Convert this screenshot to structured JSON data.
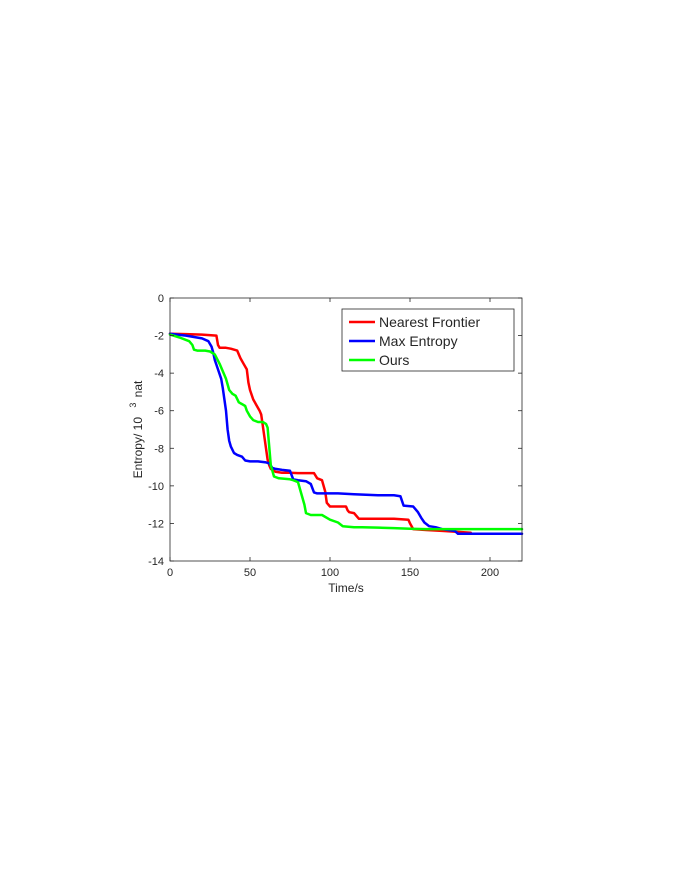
{
  "chart_data": {
    "type": "line",
    "title": "",
    "xlabel": "Time/s",
    "ylabel": {
      "prefix": "Entropy/ 10",
      "sup": "3",
      "suffix": "nat"
    },
    "xlim": [
      0,
      220
    ],
    "ylim": [
      -14,
      0
    ],
    "xticks": [
      0,
      50,
      100,
      150,
      200
    ],
    "yticks": [
      0,
      -2,
      -4,
      -6,
      -8,
      -10,
      -12,
      -14
    ],
    "grid": false,
    "legend_position": "top-right",
    "series": [
      {
        "name": "Nearest Frontier",
        "color": "#ff0000",
        "points": [
          [
            0,
            -1.9
          ],
          [
            10,
            -1.92
          ],
          [
            20,
            -1.95
          ],
          [
            29,
            -2.0
          ],
          [
            30,
            -2.5
          ],
          [
            31,
            -2.65
          ],
          [
            35,
            -2.65
          ],
          [
            38,
            -2.7
          ],
          [
            42,
            -2.8
          ],
          [
            44,
            -3.2
          ],
          [
            46,
            -3.5
          ],
          [
            48,
            -3.8
          ],
          [
            49,
            -4.5
          ],
          [
            50,
            -4.9
          ],
          [
            52,
            -5.4
          ],
          [
            54,
            -5.7
          ],
          [
            56,
            -6.0
          ],
          [
            57,
            -6.2
          ],
          [
            58,
            -6.8
          ],
          [
            59,
            -7.4
          ],
          [
            60,
            -8.0
          ],
          [
            61,
            -8.6
          ],
          [
            62,
            -8.9
          ],
          [
            63,
            -9.1
          ],
          [
            66,
            -9.25
          ],
          [
            70,
            -9.3
          ],
          [
            75,
            -9.3
          ],
          [
            80,
            -9.32
          ],
          [
            90,
            -9.32
          ],
          [
            92,
            -9.6
          ],
          [
            95,
            -9.7
          ],
          [
            97,
            -10.3
          ],
          [
            98,
            -10.9
          ],
          [
            100,
            -11.1
          ],
          [
            110,
            -11.1
          ],
          [
            111,
            -11.3
          ],
          [
            112,
            -11.4
          ],
          [
            115,
            -11.45
          ],
          [
            118,
            -11.75
          ],
          [
            130,
            -11.75
          ],
          [
            140,
            -11.75
          ],
          [
            149,
            -11.8
          ],
          [
            150,
            -12.0
          ],
          [
            152,
            -12.3
          ],
          [
            160,
            -12.35
          ],
          [
            170,
            -12.4
          ],
          [
            180,
            -12.45
          ],
          [
            188,
            -12.5
          ]
        ]
      },
      {
        "name": "Max Entropy",
        "color": "#0000ff",
        "points": [
          [
            0,
            -1.9
          ],
          [
            10,
            -2.0
          ],
          [
            20,
            -2.15
          ],
          [
            24,
            -2.3
          ],
          [
            26,
            -2.6
          ],
          [
            27,
            -2.9
          ],
          [
            28,
            -3.3
          ],
          [
            30,
            -3.8
          ],
          [
            32,
            -4.3
          ],
          [
            33,
            -4.8
          ],
          [
            34,
            -5.4
          ],
          [
            35,
            -6.0
          ],
          [
            36,
            -7.0
          ],
          [
            37,
            -7.6
          ],
          [
            38,
            -7.9
          ],
          [
            40,
            -8.25
          ],
          [
            42,
            -8.35
          ],
          [
            45,
            -8.45
          ],
          [
            47,
            -8.65
          ],
          [
            50,
            -8.7
          ],
          [
            55,
            -8.7
          ],
          [
            60,
            -8.75
          ],
          [
            62,
            -8.8
          ],
          [
            64,
            -9.05
          ],
          [
            66,
            -9.1
          ],
          [
            70,
            -9.15
          ],
          [
            75,
            -9.2
          ],
          [
            77,
            -9.65
          ],
          [
            80,
            -9.7
          ],
          [
            85,
            -9.75
          ],
          [
            88,
            -9.9
          ],
          [
            90,
            -10.35
          ],
          [
            92,
            -10.4
          ],
          [
            100,
            -10.4
          ],
          [
            105,
            -10.4
          ],
          [
            115,
            -10.45
          ],
          [
            130,
            -10.5
          ],
          [
            140,
            -10.5
          ],
          [
            144,
            -10.55
          ],
          [
            146,
            -11.05
          ],
          [
            152,
            -11.1
          ],
          [
            155,
            -11.4
          ],
          [
            157,
            -11.7
          ],
          [
            159,
            -11.95
          ],
          [
            162,
            -12.15
          ],
          [
            166,
            -12.2
          ],
          [
            170,
            -12.3
          ],
          [
            178,
            -12.4
          ],
          [
            180,
            -12.55
          ],
          [
            190,
            -12.55
          ],
          [
            200,
            -12.55
          ],
          [
            210,
            -12.55
          ],
          [
            220,
            -12.55
          ]
        ]
      },
      {
        "name": "Ours",
        "color": "#00ff00",
        "points": [
          [
            0,
            -1.95
          ],
          [
            6,
            -2.1
          ],
          [
            12,
            -2.3
          ],
          [
            14,
            -2.5
          ],
          [
            15,
            -2.75
          ],
          [
            17,
            -2.8
          ],
          [
            22,
            -2.8
          ],
          [
            25,
            -2.85
          ],
          [
            28,
            -3.0
          ],
          [
            31,
            -3.5
          ],
          [
            33,
            -3.9
          ],
          [
            35,
            -4.3
          ],
          [
            37,
            -4.9
          ],
          [
            39,
            -5.1
          ],
          [
            41,
            -5.2
          ],
          [
            43,
            -5.55
          ],
          [
            45,
            -5.65
          ],
          [
            47,
            -5.75
          ],
          [
            48,
            -6.0
          ],
          [
            50,
            -6.3
          ],
          [
            52,
            -6.5
          ],
          [
            55,
            -6.6
          ],
          [
            58,
            -6.6
          ],
          [
            60,
            -6.7
          ],
          [
            61,
            -6.9
          ],
          [
            62,
            -7.9
          ],
          [
            63,
            -8.9
          ],
          [
            65,
            -9.5
          ],
          [
            68,
            -9.6
          ],
          [
            75,
            -9.65
          ],
          [
            77,
            -9.7
          ],
          [
            80,
            -9.8
          ],
          [
            82,
            -10.4
          ],
          [
            84,
            -11.0
          ],
          [
            85,
            -11.45
          ],
          [
            88,
            -11.55
          ],
          [
            95,
            -11.55
          ],
          [
            100,
            -11.8
          ],
          [
            105,
            -11.95
          ],
          [
            108,
            -12.15
          ],
          [
            115,
            -12.2
          ],
          [
            120,
            -12.2
          ],
          [
            130,
            -12.22
          ],
          [
            140,
            -12.25
          ],
          [
            150,
            -12.28
          ],
          [
            160,
            -12.3
          ],
          [
            170,
            -12.3
          ],
          [
            180,
            -12.3
          ],
          [
            190,
            -12.3
          ],
          [
            200,
            -12.3
          ],
          [
            210,
            -12.3
          ],
          [
            220,
            -12.3
          ]
        ]
      }
    ]
  }
}
